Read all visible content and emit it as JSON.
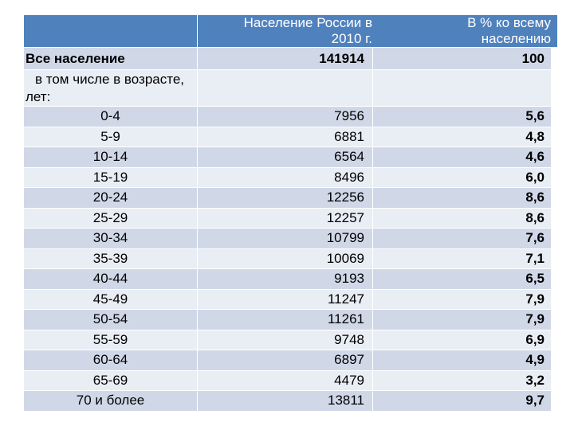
{
  "header": {
    "col1": "",
    "col2_line1": "Население России в",
    "col2_line2": "2010 г.",
    "col3_line1": "В % ко всему",
    "col3_line2": "населению"
  },
  "total": {
    "label": "Все население",
    "population": "141914",
    "percent": "100"
  },
  "including": {
    "line1": "в том числе в возрасте,",
    "line2": "лет:"
  },
  "rows": [
    {
      "age": "0-4",
      "population": "7956",
      "percent": "5,6"
    },
    {
      "age": "5-9",
      "population": "6881",
      "percent": "4,8"
    },
    {
      "age": "10-14",
      "population": "6564",
      "percent": "4,6"
    },
    {
      "age": "15-19",
      "population": "8496",
      "percent": "6,0"
    },
    {
      "age": "20-24",
      "population": "12256",
      "percent": "8,6"
    },
    {
      "age": "25-29",
      "population": "12257",
      "percent": "8,6"
    },
    {
      "age": "30-34",
      "population": "10799",
      "percent": "7,6"
    },
    {
      "age": "35-39",
      "population": "10069",
      "percent": "7,1"
    },
    {
      "age": "40-44",
      "population": "9193",
      "percent": "6,5"
    },
    {
      "age": "45-49",
      "population": "11247",
      "percent": "7,9"
    },
    {
      "age": "50-54",
      "population": "11261",
      "percent": "7,9"
    },
    {
      "age": "55-59",
      "population": "9748",
      "percent": "6,9"
    },
    {
      "age": "60-64",
      "population": "6897",
      "percent": "4,9"
    },
    {
      "age": "65-69",
      "population": "4479",
      "percent": "3,2"
    },
    {
      "age": "70 и более",
      "population": "13811",
      "percent": "9,7"
    }
  ],
  "colors": {
    "header": "#4f81bd",
    "row_dark": "#d0d8e8",
    "row_light": "#e9edf4"
  }
}
